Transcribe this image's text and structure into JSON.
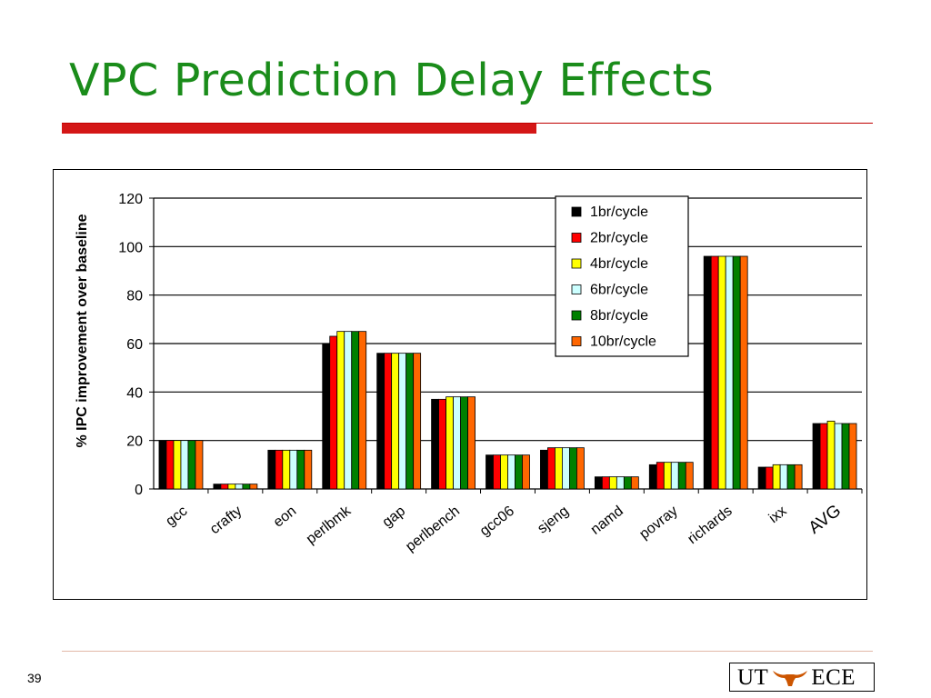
{
  "slide": {
    "title": "VPC Prediction Delay Effects",
    "page_number": "39",
    "logo": {
      "left_text": "UT",
      "right_text": "ECE",
      "mark_icon": "longhorn-icon"
    }
  },
  "colors": {
    "title": "#1a8c1a",
    "title_rule": "#d41616",
    "series": [
      "#000000",
      "#ff0000",
      "#ffff00",
      "#ccffff",
      "#008000",
      "#ff6600"
    ]
  },
  "chart_data": {
    "type": "bar",
    "title": "",
    "xlabel": "",
    "ylabel": "% IPC improvement over baseline",
    "ylim": [
      0,
      120
    ],
    "yticks": [
      0,
      20,
      40,
      60,
      80,
      100,
      120
    ],
    "grid": true,
    "legend_position": "top-right",
    "categories": [
      "gcc",
      "crafty",
      "eon",
      "perlbmk",
      "gap",
      "perlbench",
      "gcc06",
      "sjeng",
      "namd",
      "povray",
      "richards",
      "ixx",
      "AVG"
    ],
    "series": [
      {
        "name": "1br/cycle",
        "values": [
          20,
          2,
          16,
          60,
          56,
          37,
          14,
          16,
          5,
          10,
          96,
          9,
          27
        ]
      },
      {
        "name": "2br/cycle",
        "values": [
          20,
          2,
          16,
          63,
          56,
          37,
          14,
          17,
          5,
          11,
          96,
          9,
          27
        ]
      },
      {
        "name": "4br/cycle",
        "values": [
          20,
          2,
          16,
          65,
          56,
          38,
          14,
          17,
          5,
          11,
          96,
          10,
          28
        ]
      },
      {
        "name": "6br/cycle",
        "values": [
          20,
          2,
          16,
          65,
          56,
          38,
          14,
          17,
          5,
          11,
          96,
          10,
          27
        ]
      },
      {
        "name": "8br/cycle",
        "values": [
          20,
          2,
          16,
          65,
          56,
          38,
          14,
          17,
          5,
          11,
          96,
          10,
          27
        ]
      },
      {
        "name": "10br/cycle",
        "values": [
          20,
          2,
          16,
          65,
          56,
          38,
          14,
          17,
          5,
          11,
          96,
          10,
          27
        ]
      }
    ]
  }
}
